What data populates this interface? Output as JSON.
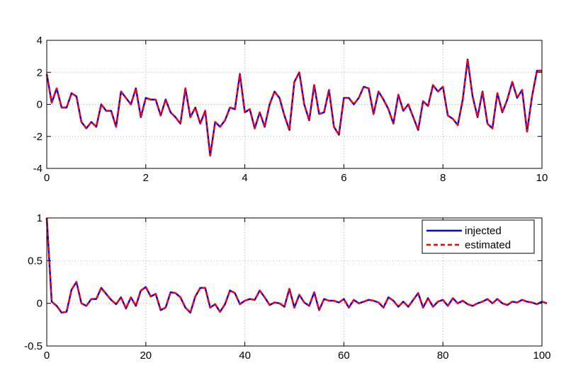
{
  "chart_data": [
    {
      "type": "line",
      "xlim": [
        0,
        10
      ],
      "ylim": [
        -4,
        4
      ],
      "xticks": [
        0,
        2,
        4,
        6,
        8,
        10
      ],
      "yticks": [
        -4,
        -2,
        0,
        2,
        4
      ],
      "xtick_labels": [
        "0",
        "2",
        "4",
        "6",
        "8",
        "10"
      ],
      "ytick_labels": [
        "-4",
        "-2",
        "0",
        "2",
        "4"
      ],
      "grid": true,
      "series": [
        {
          "color": "#0000ff",
          "style": "solid",
          "x": [
            0.0,
            0.1,
            0.2,
            0.3,
            0.4,
            0.5,
            0.6,
            0.7,
            0.8,
            0.9,
            1.0,
            1.1,
            1.2,
            1.3,
            1.4,
            1.5,
            1.6,
            1.7,
            1.8,
            1.9,
            2.0,
            2.1,
            2.2,
            2.3,
            2.4,
            2.5,
            2.6,
            2.7,
            2.8,
            2.9,
            3.0,
            3.1,
            3.2,
            3.3,
            3.4,
            3.5,
            3.6,
            3.7,
            3.8,
            3.9,
            4.0,
            4.1,
            4.2,
            4.3,
            4.4,
            4.5,
            4.6,
            4.7,
            4.8,
            4.9,
            5.0,
            5.1,
            5.2,
            5.3,
            5.4,
            5.5,
            5.6,
            5.7,
            5.8,
            5.9,
            6.0,
            6.1,
            6.2,
            6.3,
            6.4,
            6.5,
            6.6,
            6.7,
            6.8,
            6.9,
            7.0,
            7.1,
            7.2,
            7.3,
            7.4,
            7.5,
            7.6,
            7.7,
            7.8,
            7.9,
            8.0,
            8.1,
            8.2,
            8.3,
            8.4,
            8.5,
            8.6,
            8.7,
            8.8,
            8.9,
            9.0,
            9.1,
            9.2,
            9.3,
            9.4,
            9.5,
            9.6,
            9.7,
            9.8,
            9.9,
            10.0
          ],
          "y": [
            1.9,
            0.1,
            1.0,
            -0.2,
            -0.2,
            0.7,
            0.5,
            -1.1,
            -1.5,
            -1.1,
            -1.4,
            0.0,
            -0.4,
            -0.4,
            -1.4,
            0.8,
            0.4,
            0.0,
            1.0,
            -0.8,
            0.4,
            0.3,
            0.3,
            -0.7,
            0.3,
            -0.5,
            -0.8,
            -1.2,
            1.0,
            -0.8,
            -0.2,
            -1.2,
            -0.4,
            -3.2,
            -1.1,
            -1.4,
            -1.0,
            -0.2,
            -0.3,
            1.9,
            -0.5,
            -0.3,
            -1.5,
            -0.5,
            -1.4,
            0.0,
            0.8,
            0.4,
            -0.7,
            -1.6,
            1.4,
            2.0,
            0.0,
            -1.0,
            1.2,
            -0.6,
            -0.5,
            0.9,
            -1.4,
            -1.9,
            0.4,
            0.4,
            0.0,
            0.4,
            1.1,
            1.0,
            -0.6,
            0.8,
            0.3,
            -0.3,
            -1.2,
            0.6,
            -0.4,
            0.0,
            -0.8,
            -1.6,
            0.2,
            -0.1,
            1.2,
            0.8,
            1.1,
            -0.7,
            -0.9,
            -1.3,
            0.3,
            2.8,
            0.5,
            -0.8,
            0.8,
            -1.2,
            -1.5,
            0.7,
            -0.5,
            0.3,
            1.4,
            0.4,
            0.9,
            -1.7,
            0.5,
            2.1,
            2.1
          ]
        },
        {
          "color": "#ff0000",
          "style": "dashed",
          "x": [
            0.0,
            0.1,
            0.2,
            0.3,
            0.4,
            0.5,
            0.6,
            0.7,
            0.8,
            0.9,
            1.0,
            1.1,
            1.2,
            1.3,
            1.4,
            1.5,
            1.6,
            1.7,
            1.8,
            1.9,
            2.0,
            2.1,
            2.2,
            2.3,
            2.4,
            2.5,
            2.6,
            2.7,
            2.8,
            2.9,
            3.0,
            3.1,
            3.2,
            3.3,
            3.4,
            3.5,
            3.6,
            3.7,
            3.8,
            3.9,
            4.0,
            4.1,
            4.2,
            4.3,
            4.4,
            4.5,
            4.6,
            4.7,
            4.8,
            4.9,
            5.0,
            5.1,
            5.2,
            5.3,
            5.4,
            5.5,
            5.6,
            5.7,
            5.8,
            5.9,
            6.0,
            6.1,
            6.2,
            6.3,
            6.4,
            6.5,
            6.6,
            6.7,
            6.8,
            6.9,
            7.0,
            7.1,
            7.2,
            7.3,
            7.4,
            7.5,
            7.6,
            7.7,
            7.8,
            7.9,
            8.0,
            8.1,
            8.2,
            8.3,
            8.4,
            8.5,
            8.6,
            8.7,
            8.8,
            8.9,
            9.0,
            9.1,
            9.2,
            9.3,
            9.4,
            9.5,
            9.6,
            9.7,
            9.8,
            9.9,
            10.0
          ],
          "y": [
            1.9,
            0.1,
            1.0,
            -0.2,
            -0.2,
            0.7,
            0.5,
            -1.1,
            -1.5,
            -1.1,
            -1.4,
            0.0,
            -0.4,
            -0.4,
            -1.4,
            0.8,
            0.4,
            0.0,
            1.0,
            -0.8,
            0.4,
            0.3,
            0.3,
            -0.7,
            0.3,
            -0.5,
            -0.8,
            -1.2,
            1.0,
            -0.8,
            -0.2,
            -1.2,
            -0.4,
            -3.2,
            -1.1,
            -1.4,
            -1.0,
            -0.2,
            -0.3,
            1.9,
            -0.5,
            -0.3,
            -1.5,
            -0.5,
            -1.4,
            0.0,
            0.8,
            0.4,
            -0.7,
            -1.6,
            1.4,
            2.0,
            0.0,
            -1.0,
            1.2,
            -0.6,
            -0.5,
            0.9,
            -1.4,
            -1.9,
            0.4,
            0.4,
            0.0,
            0.4,
            1.1,
            1.0,
            -0.6,
            0.8,
            0.3,
            -0.3,
            -1.2,
            0.6,
            -0.4,
            0.0,
            -0.8,
            -1.6,
            0.2,
            -0.1,
            1.2,
            0.8,
            1.1,
            -0.7,
            -0.9,
            -1.3,
            0.3,
            2.8,
            0.5,
            -0.8,
            0.8,
            -1.2,
            -1.5,
            0.7,
            -0.5,
            0.3,
            1.4,
            0.4,
            0.9,
            -1.7,
            0.5,
            2.1,
            2.1
          ]
        }
      ]
    },
    {
      "type": "line",
      "xlim": [
        0,
        100
      ],
      "ylim": [
        -0.5,
        1
      ],
      "xticks": [
        0,
        20,
        40,
        60,
        80,
        100
      ],
      "yticks": [
        -0.5,
        0,
        0.5,
        1
      ],
      "xtick_labels": [
        "0",
        "20",
        "40",
        "60",
        "80",
        "100"
      ],
      "ytick_labels": [
        "-0.5",
        "0",
        "0.5",
        "1"
      ],
      "grid": true,
      "legend_position": "top-right",
      "series": [
        {
          "name": "injected",
          "color": "#0000ff",
          "style": "solid",
          "y": [
            1.0,
            0.02,
            -0.03,
            -0.11,
            -0.1,
            0.16,
            0.25,
            0.0,
            -0.03,
            0.05,
            0.05,
            0.18,
            0.11,
            0.04,
            -0.01,
            0.07,
            -0.06,
            0.07,
            -0.03,
            0.15,
            0.19,
            0.08,
            0.11,
            -0.08,
            -0.05,
            0.13,
            0.12,
            0.07,
            -0.05,
            -0.11,
            0.08,
            0.18,
            0.18,
            -0.05,
            -0.01,
            -0.1,
            -0.01,
            0.15,
            0.12,
            -0.01,
            0.03,
            0.05,
            0.04,
            0.15,
            0.07,
            -0.02,
            0.01,
            0.0,
            -0.04,
            0.17,
            -0.05,
            0.1,
            0.01,
            -0.03,
            0.13,
            -0.08,
            0.05,
            0.03,
            0.03,
            0.01,
            0.05,
            -0.05,
            0.04,
            0.0,
            0.02,
            0.04,
            0.03,
            0.01,
            -0.05,
            0.07,
            0.03,
            -0.04,
            0.02,
            -0.04,
            0.04,
            0.12,
            -0.05,
            0.06,
            -0.04,
            0.02,
            0.04,
            -0.03,
            0.06,
            0.0,
            0.03,
            -0.01,
            -0.03,
            0.0,
            0.02,
            0.05,
            0.0,
            0.05,
            0.0,
            -0.02,
            0.02,
            0.01,
            0.04,
            0.02,
            0.01,
            -0.01,
            0.02,
            0.0
          ]
        },
        {
          "name": "estimated",
          "color": "#ff0000",
          "style": "dashed",
          "y": [
            1.0,
            0.02,
            -0.03,
            -0.11,
            -0.1,
            0.16,
            0.25,
            0.0,
            -0.03,
            0.05,
            0.05,
            0.18,
            0.11,
            0.04,
            -0.01,
            0.07,
            -0.06,
            0.07,
            -0.03,
            0.15,
            0.19,
            0.08,
            0.11,
            -0.08,
            -0.05,
            0.13,
            0.12,
            0.07,
            -0.05,
            -0.11,
            0.08,
            0.18,
            0.18,
            -0.05,
            -0.01,
            -0.1,
            -0.01,
            0.15,
            0.12,
            -0.01,
            0.03,
            0.05,
            0.04,
            0.15,
            0.07,
            -0.02,
            0.01,
            0.0,
            -0.04,
            0.17,
            -0.05,
            0.1,
            0.01,
            -0.03,
            0.13,
            -0.08,
            0.05,
            0.03,
            0.03,
            0.01,
            0.05,
            -0.05,
            0.04,
            0.0,
            0.02,
            0.04,
            0.03,
            0.01,
            -0.05,
            0.07,
            0.03,
            -0.04,
            0.02,
            -0.04,
            0.04,
            0.12,
            -0.05,
            0.06,
            -0.04,
            0.02,
            0.04,
            -0.03,
            0.06,
            0.0,
            0.03,
            -0.01,
            -0.03,
            0.0,
            0.02,
            0.05,
            0.0,
            0.05,
            0.0,
            -0.02,
            0.02,
            0.01,
            0.04,
            0.02,
            0.01,
            -0.01,
            0.02,
            0.0
          ]
        }
      ]
    }
  ]
}
